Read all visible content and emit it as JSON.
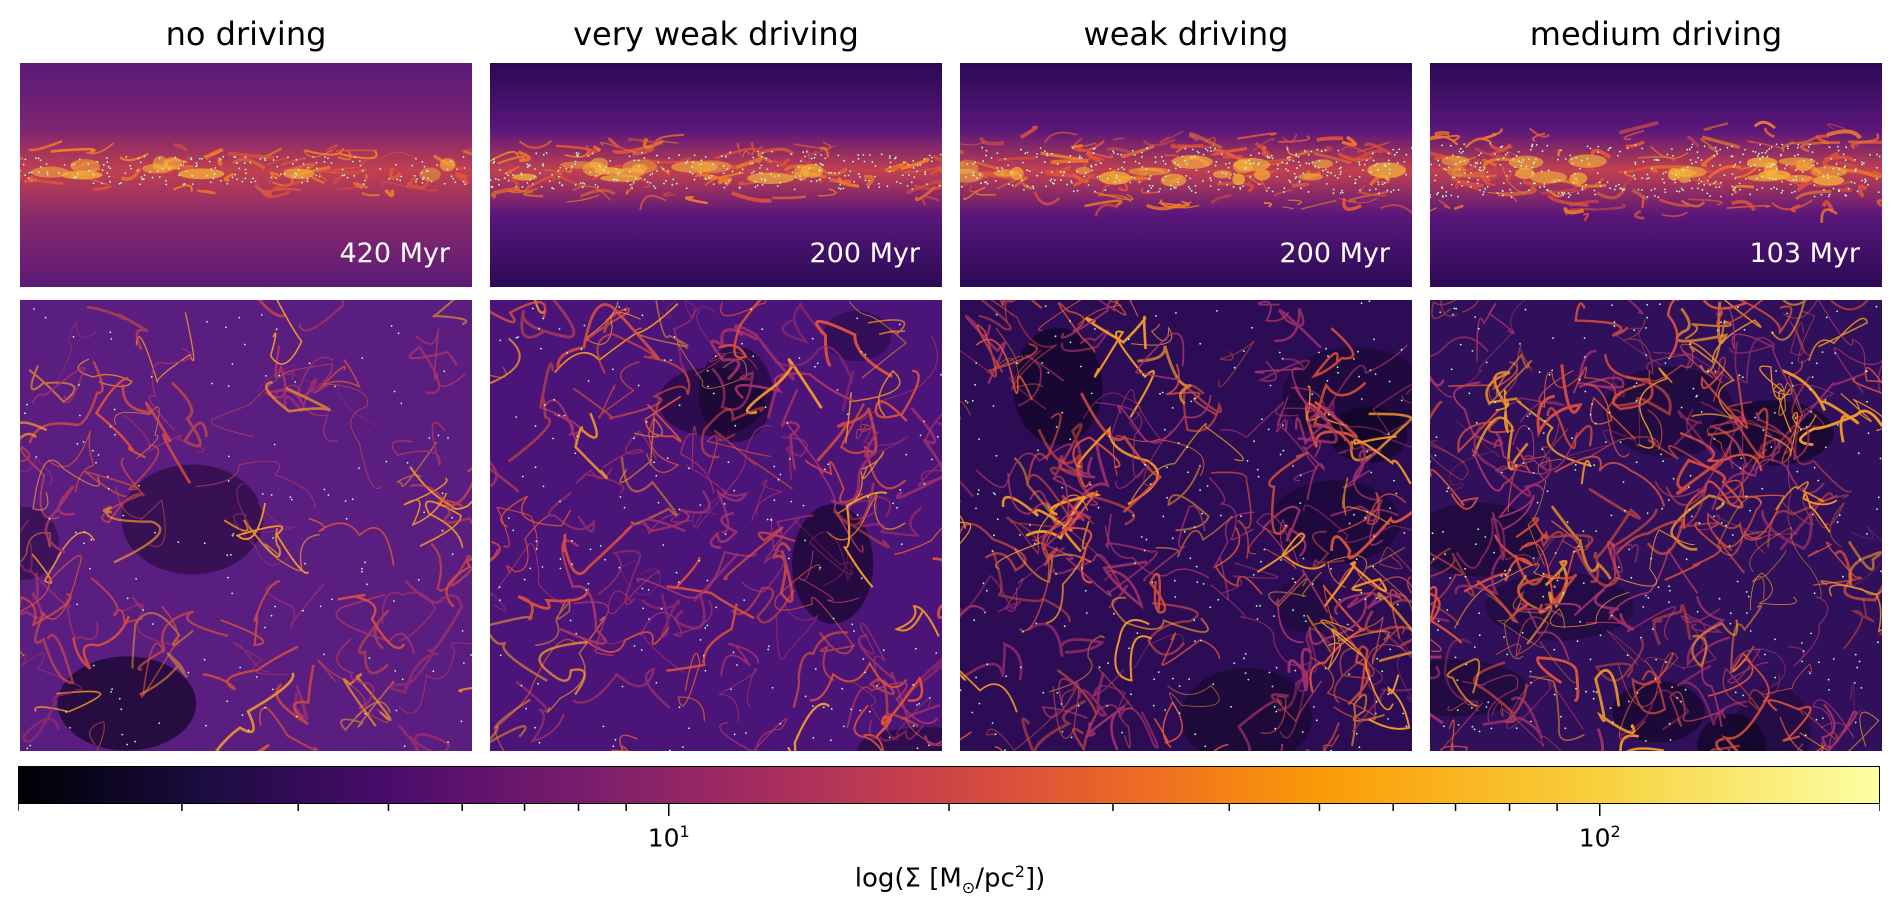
{
  "chart_data": {
    "type": "heatmap",
    "columns": [
      {
        "title": "no driving",
        "time_label": "420 Myr"
      },
      {
        "title": "very weak driving",
        "time_label": "200 Myr"
      },
      {
        "title": "weak driving",
        "time_label": "200 Myr"
      },
      {
        "title": "medium driving",
        "time_label": "103 Myr"
      }
    ],
    "rows": [
      "edge-on view",
      "face-on view"
    ],
    "colorbar": {
      "label_prefix": "log(Σ [M",
      "label_sub": "⊙",
      "label_mid": "/pc",
      "label_sup": "2",
      "label_suffix": "])",
      "scale": "log",
      "range": [
        2,
        200
      ],
      "colormap": "inferno",
      "ticks": [
        {
          "base": "10",
          "exp": "1",
          "value": 10
        },
        {
          "base": "10",
          "exp": "2",
          "value": 100
        }
      ]
    },
    "colors": {
      "background_mid": "#3a0f6a",
      "filament": "#e8672a",
      "bright": "#f9c93a",
      "star_particle": "#b6ffd6"
    }
  }
}
